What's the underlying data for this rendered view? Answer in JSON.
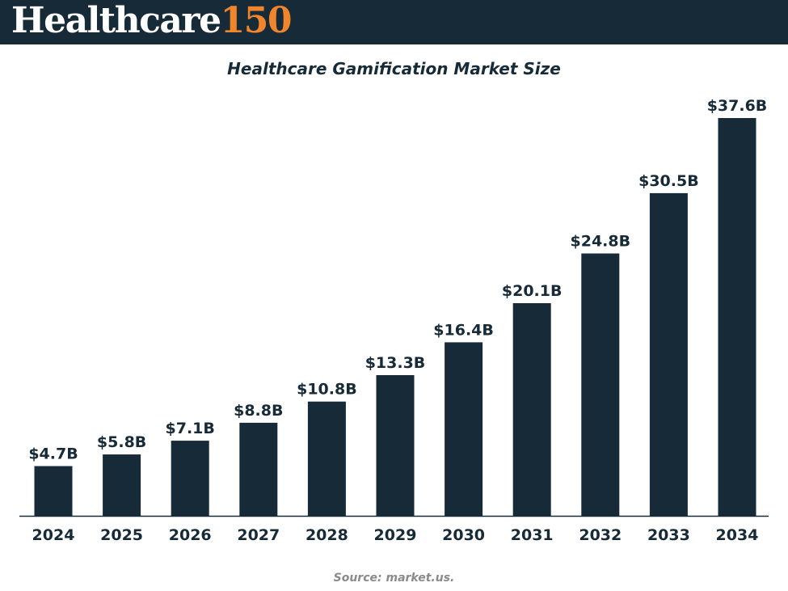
{
  "header": {
    "logo_word": "Healthcare",
    "logo_number": "150"
  },
  "colors": {
    "header_bg": "#162a38",
    "bar": "#162a38",
    "logo_accent": "#f0852b",
    "source_text": "#8a8a8a"
  },
  "chart_data": {
    "type": "bar",
    "title": "Healthcare Gamification Market Size",
    "xlabel": "",
    "ylabel": "",
    "grid": false,
    "ylim": [
      0,
      37.6
    ],
    "categories": [
      "2024",
      "2025",
      "2026",
      "2027",
      "2028",
      "2029",
      "2030",
      "2031",
      "2032",
      "2033",
      "2034"
    ],
    "values": [
      4.7,
      5.8,
      7.1,
      8.8,
      10.8,
      13.3,
      16.4,
      20.1,
      24.8,
      30.5,
      37.6
    ],
    "value_labels": [
      "$4.7B",
      "$5.8B",
      "$7.1B",
      "$8.8B",
      "$10.8B",
      "$13.3B",
      "$16.4B",
      "$20.1B",
      "$24.8B",
      "$30.5B",
      "$37.6B"
    ]
  },
  "footer": {
    "source": "Source: market.us."
  }
}
